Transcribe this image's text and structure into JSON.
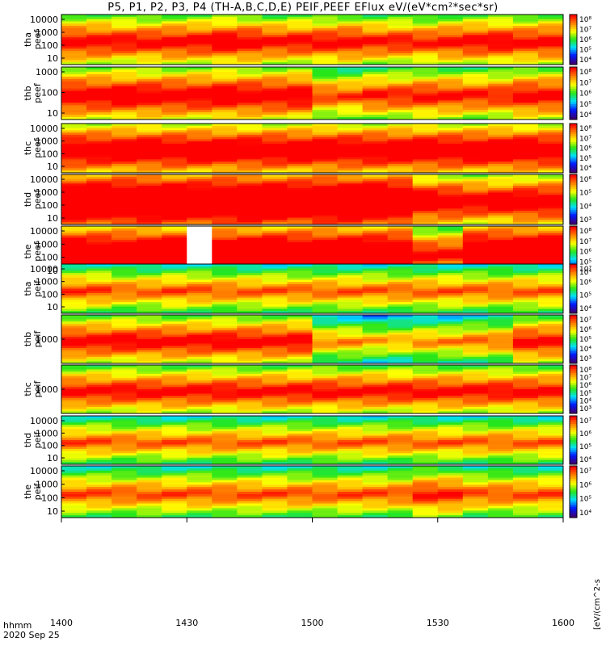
{
  "chart_data": {
    "type": "heatmap",
    "title": "P5, P1, P2, P3, P4 (TH-A,B,C,D,E) PEIF,PEEF EFlux eV/(eV*cm²*sec*sr)",
    "x_ticks": [
      "1400",
      "1430",
      "1500",
      "1530",
      "1600"
    ],
    "x_range": [
      "1400",
      "1600"
    ],
    "x_label_1": "hhmm",
    "x_label_2": "2020 Sep 25",
    "colorbar_unit_label": "[eV/(cm^2-s",
    "colormap": [
      "#3c0074",
      "#0019ff",
      "#00e0ff",
      "#25e61a",
      "#ffff00",
      "#ff8000",
      "#ff0000"
    ],
    "panels": [
      {
        "probe": "tha",
        "product": "peef",
        "ylabels": [
          "10000",
          "1000",
          "100",
          "10"
        ],
        "clabels": [
          "10⁸",
          "10⁷",
          "10⁶",
          "10⁵",
          "10⁴"
        ],
        "band_fill": [
          0.62,
          0.62,
          0.6,
          0.6,
          0.62,
          0.62,
          0.64,
          0.64,
          0.6,
          0.6,
          0.6,
          0.62,
          0.58,
          0.58,
          0.56,
          0.6,
          0.62,
          0.62,
          0.6,
          0.62
        ]
      },
      {
        "probe": "thb",
        "product": "peef",
        "ylabels": [
          "1000",
          "100",
          "10"
        ],
        "clabels": [
          "10⁸",
          "10⁷",
          "10⁶",
          "10⁵",
          "10⁴"
        ],
        "band_fill": [
          0.66,
          0.66,
          0.66,
          0.66,
          0.66,
          0.66,
          0.66,
          0.66,
          0.66,
          0.66,
          0.5,
          0.5,
          0.56,
          0.56,
          0.58,
          0.58,
          0.56,
          0.56,
          0.62,
          0.62
        ]
      },
      {
        "probe": "thc",
        "product": "peef",
        "ylabels": [
          "10000",
          "1000",
          "100",
          "10"
        ],
        "clabels": [
          "10⁸",
          "10⁷",
          "10⁶",
          "10⁵",
          "10⁴"
        ],
        "band_fill": [
          0.72,
          0.72,
          0.72,
          0.72,
          0.72,
          0.72,
          0.72,
          0.72,
          0.72,
          0.72,
          0.72,
          0.72,
          0.72,
          0.72,
          0.72,
          0.72,
          0.72,
          0.72,
          0.72,
          0.72
        ]
      },
      {
        "probe": "thd",
        "product": "peef",
        "ylabels": [
          "10000",
          "1000",
          "100",
          "10"
        ],
        "clabels": [
          "10⁶",
          "10⁵",
          "10⁴",
          "10³"
        ],
        "band_fill": [
          0.86,
          0.86,
          0.88,
          0.88,
          0.86,
          0.86,
          0.88,
          0.88,
          0.86,
          0.86,
          0.88,
          0.88,
          0.86,
          0.86,
          0.7,
          0.7,
          0.66,
          0.66,
          0.7,
          0.7
        ]
      },
      {
        "probe": "the",
        "product": "peef",
        "ylabels": [
          "10000",
          "1000",
          "100",
          "10"
        ],
        "clabels": [
          "10⁸",
          "10⁷",
          "10⁶",
          "10⁵",
          "10⁴"
        ],
        "band_fill": [
          0.8,
          0.8,
          0.8,
          0.8,
          0.8,
          0.0,
          0.82,
          0.82,
          0.82,
          0.82,
          0.82,
          0.82,
          0.82,
          0.82,
          0.6,
          0.6,
          0.84,
          0.84,
          0.84,
          0.84
        ]
      },
      {
        "probe": "tha",
        "product": "peif",
        "ylabels": [
          "10000",
          "1000",
          "100",
          "10"
        ],
        "clabels": [
          "10⁷",
          "10⁶",
          "10⁵",
          "10⁴"
        ],
        "band_fill": [
          0.5,
          0.5,
          0.46,
          0.46,
          0.48,
          0.48,
          0.46,
          0.46,
          0.46,
          0.46,
          0.46,
          0.46,
          0.46,
          0.46,
          0.46,
          0.46,
          0.46,
          0.46,
          0.46,
          0.46
        ]
      },
      {
        "probe": "thb",
        "product": "peif",
        "ylabels": [
          "1000"
        ],
        "clabels": [
          "10⁷",
          "10⁶",
          "10⁵",
          "10⁴",
          "10³"
        ],
        "band_fill": [
          0.62,
          0.62,
          0.62,
          0.62,
          0.62,
          0.62,
          0.62,
          0.62,
          0.62,
          0.62,
          0.4,
          0.4,
          0.36,
          0.36,
          0.4,
          0.4,
          0.44,
          0.44,
          0.6,
          0.6
        ]
      },
      {
        "probe": "thc",
        "product": "peif",
        "ylabels": [
          "1000"
        ],
        "clabels": [
          "10⁸",
          "10⁷",
          "10⁶",
          "10⁵",
          "10⁴",
          "10³"
        ],
        "band_fill": [
          0.6,
          0.6,
          0.6,
          0.6,
          0.6,
          0.6,
          0.6,
          0.6,
          0.6,
          0.6,
          0.6,
          0.6,
          0.6,
          0.6,
          0.6,
          0.6,
          0.6,
          0.6,
          0.6,
          0.6
        ]
      },
      {
        "probe": "thd",
        "product": "peif",
        "ylabels": [
          "10000",
          "1000",
          "100",
          "10"
        ],
        "clabels": [
          "10⁷",
          "10⁶",
          "10⁵",
          "10⁴"
        ],
        "band_fill": [
          0.48,
          0.48,
          0.46,
          0.46,
          0.46,
          0.46,
          0.46,
          0.46,
          0.46,
          0.46,
          0.46,
          0.46,
          0.46,
          0.46,
          0.46,
          0.46,
          0.46,
          0.46,
          0.46,
          0.46
        ]
      },
      {
        "probe": "the",
        "product": "peif",
        "ylabels": [
          "10000",
          "1000",
          "100",
          "10"
        ],
        "clabels": [
          "10⁷",
          "10⁶",
          "10⁵",
          "10⁴"
        ],
        "band_fill": [
          0.48,
          0.48,
          0.48,
          0.48,
          0.48,
          0.48,
          0.48,
          0.48,
          0.48,
          0.48,
          0.48,
          0.48,
          0.48,
          0.48,
          0.56,
          0.56,
          0.48,
          0.48,
          0.48,
          0.48
        ]
      }
    ]
  }
}
